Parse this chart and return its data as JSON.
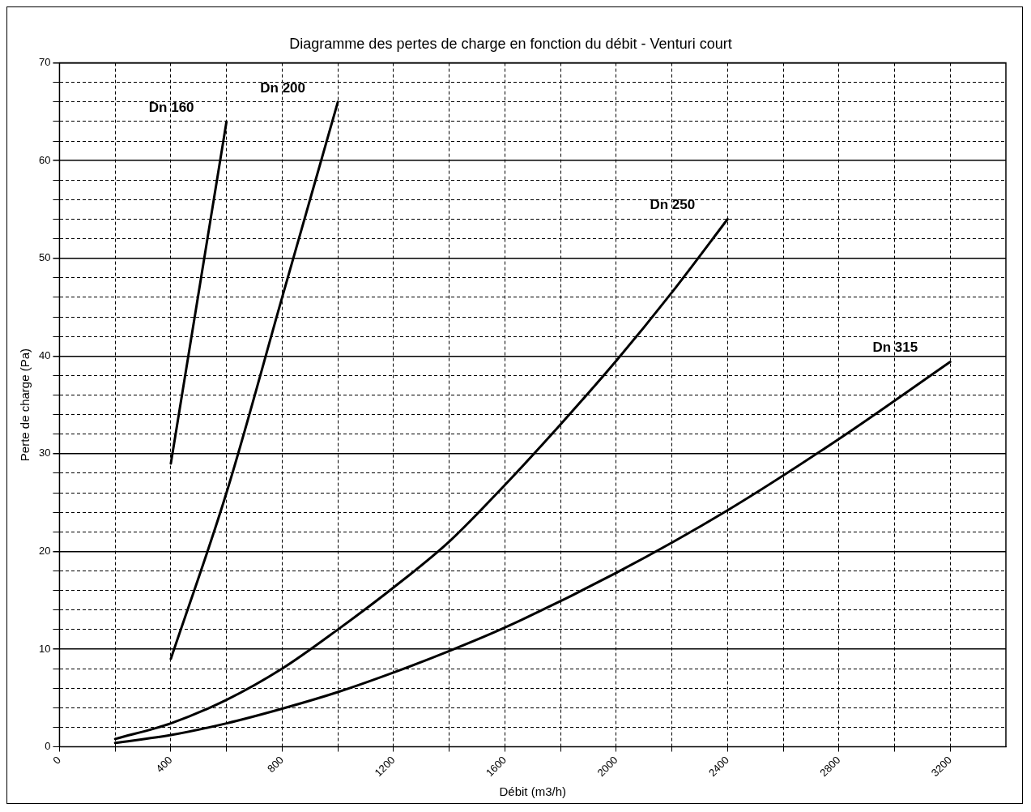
{
  "chart_data": {
    "type": "line",
    "title": "Diagramme des pertes de charge en fonction du débit - Venturi court",
    "xlabel": "Débit (m3/h)",
    "ylabel": "Perte de charge (Pa)",
    "xlim": [
      0,
      3400
    ],
    "xticks": [
      0,
      {
        "value": 200,
        "label": null
      },
      400,
      {
        "value": 600,
        "label": null
      },
      800,
      {
        "value": 1000,
        "label": null
      },
      1200,
      {
        "value": 1400,
        "label": null
      },
      1600,
      {
        "value": 1800,
        "label": null
      },
      2000,
      {
        "value": 2200,
        "label": null
      },
      2400,
      {
        "value": 2600,
        "label": null
      },
      2800,
      {
        "value": 3000,
        "label": null
      },
      3200
    ],
    "ylim": [
      0,
      70
    ],
    "yticks": [
      0,
      {
        "value": 2,
        "label": null
      },
      {
        "value": 4,
        "label": null
      },
      {
        "value": 6,
        "label": null
      },
      {
        "value": 8,
        "label": null
      },
      10,
      {
        "value": 12,
        "label": null
      },
      {
        "value": 14,
        "label": null
      },
      {
        "value": 16,
        "label": null
      },
      {
        "value": 18,
        "label": null
      },
      20,
      {
        "value": 22,
        "label": null
      },
      {
        "value": 24,
        "label": null
      },
      {
        "value": 26,
        "label": null
      },
      {
        "value": 28,
        "label": null
      },
      30,
      {
        "value": 32,
        "label": null
      },
      {
        "value": 34,
        "label": null
      },
      {
        "value": 36,
        "label": null
      },
      {
        "value": 38,
        "label": null
      },
      40,
      {
        "value": 42,
        "label": null
      },
      {
        "value": 44,
        "label": null
      },
      {
        "value": 46,
        "label": null
      },
      {
        "value": 48,
        "label": null
      },
      50,
      {
        "value": 52,
        "label": null
      },
      {
        "value": 54,
        "label": null
      },
      {
        "value": 56,
        "label": null
      },
      {
        "value": 58,
        "label": null
      },
      60,
      {
        "value": 62,
        "label": null
      },
      {
        "value": 64,
        "label": null
      },
      {
        "value": 66,
        "label": null
      },
      {
        "value": 68,
        "label": null
      },
      70
    ],
    "grid": true,
    "legend": false,
    "marker": "none",
    "line_style": "solid",
    "series": [
      {
        "name": "Dn 160",
        "color": "#000000",
        "x": [
          400,
          600
        ],
        "values": [
          29,
          64
        ]
      },
      {
        "name": "Dn 200",
        "color": "#000000",
        "x": [
          400,
          600,
          800,
          1000
        ],
        "values": [
          9,
          26,
          46,
          66
        ]
      },
      {
        "name": "Dn 250",
        "color": "#000000",
        "x": [
          200,
          400,
          600,
          800,
          1000,
          1200,
          1400,
          1600,
          1800,
          2000,
          2200,
          2400
        ],
        "values": [
          0.8,
          2.4,
          4.8,
          8,
          12,
          16.3,
          21,
          26.8,
          33,
          39.5,
          46.5,
          54
        ]
      },
      {
        "name": "Dn 315",
        "color": "#000000",
        "x": [
          200,
          400,
          600,
          800,
          1000,
          1200,
          1400,
          1600,
          2000,
          2400,
          2800,
          3200
        ],
        "values": [
          0.4,
          1.2,
          2.4,
          3.9,
          5.6,
          7.6,
          9.8,
          12.2,
          17.8,
          24.2,
          31.5,
          39.4
        ]
      }
    ]
  }
}
